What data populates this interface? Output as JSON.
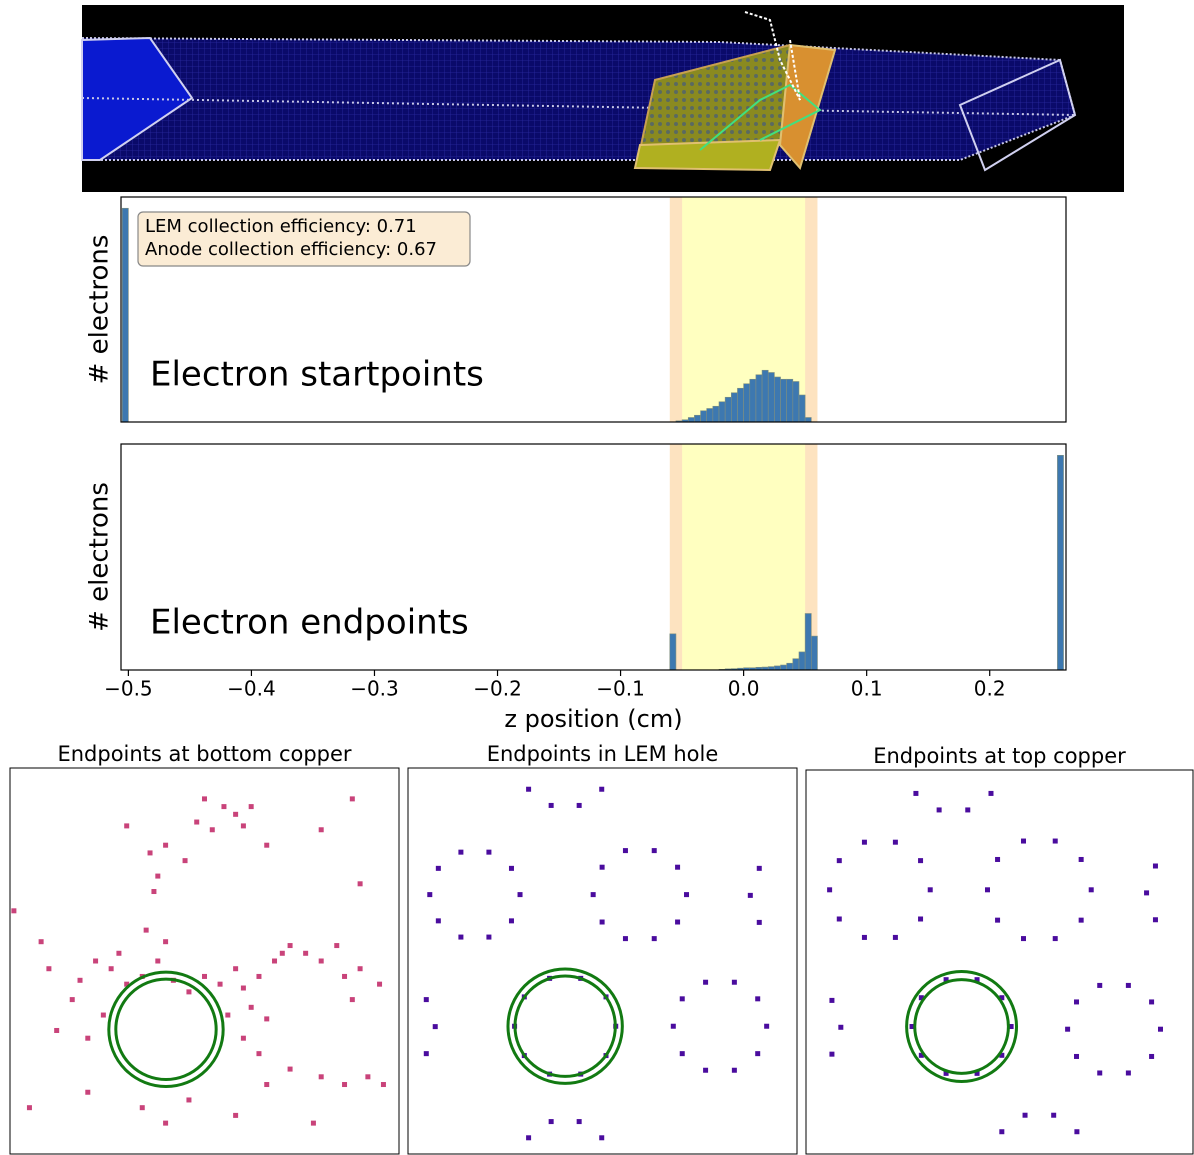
{
  "chart_data": [
    {
      "type": "histogram",
      "ylabel": "# electrons",
      "label": "Electron startpoints",
      "annotations": [
        "LEM collection efficiency: 0.71",
        "Anode collection efficiency: 0.67"
      ],
      "bins": [
        -0.505,
        -0.5,
        -0.06,
        -0.055,
        -0.05,
        -0.045,
        -0.04,
        -0.035,
        -0.03,
        -0.025,
        -0.02,
        -0.015,
        -0.01,
        -0.005,
        0,
        0.005,
        0.01,
        0.015,
        0.02,
        0.025,
        0.03,
        0.035,
        0.04,
        0.045,
        0.05,
        0.055,
        0.06,
        0.255,
        0.26
      ],
      "counts": [
        95,
        0,
        0,
        0.5,
        1,
        2,
        3,
        5,
        6,
        7,
        9,
        11,
        13,
        15,
        17,
        19,
        21,
        23,
        22,
        20,
        19,
        19,
        18,
        12,
        2,
        0,
        0,
        0
      ],
      "color": "#3d78b0",
      "xlim": [
        -0.506,
        0.262
      ],
      "ylim": [
        0,
        100
      ],
      "regions": [
        {
          "range": [
            -0.06,
            0.06
          ],
          "color": "#fde3c0"
        },
        {
          "range": [
            -0.05,
            0.05
          ],
          "color": "#ffffc0"
        }
      ]
    },
    {
      "type": "histogram",
      "ylabel": "# electrons",
      "label": "Electron endpoints",
      "xlabel": "z position (cm)",
      "bins": [
        -0.505,
        -0.5,
        -0.06,
        -0.055,
        -0.05,
        -0.045,
        -0.04,
        -0.035,
        -0.03,
        -0.025,
        -0.02,
        -0.015,
        -0.01,
        -0.005,
        0,
        0.005,
        0.01,
        0.015,
        0.02,
        0.025,
        0.03,
        0.035,
        0.04,
        0.045,
        0.05,
        0.055,
        0.06,
        0.255,
        0.26
      ],
      "counts": [
        0,
        0,
        16,
        0,
        0,
        0,
        0,
        0,
        0,
        0,
        0.3,
        0.5,
        0.6,
        0.8,
        1,
        1,
        1.2,
        1.3,
        1.5,
        1.8,
        2.2,
        3,
        5,
        8,
        25,
        15,
        0,
        95
      ],
      "color": "#3d78b0",
      "xlim": [
        -0.506,
        0.262
      ],
      "ylim": [
        0,
        100
      ],
      "xticks": [
        {
          "value": -0.5,
          "label": "−0.5"
        },
        {
          "value": -0.4,
          "label": "−0.4"
        },
        {
          "value": -0.3,
          "label": "−0.3"
        },
        {
          "value": -0.2,
          "label": "−0.2"
        },
        {
          "value": -0.1,
          "label": "−0.1"
        },
        {
          "value": 0,
          "label": "0.0"
        },
        0.1,
        0.2
      ],
      "regions": [
        {
          "range": [
            -0.06,
            0.06
          ],
          "color": "#fde3c0"
        },
        {
          "range": [
            -0.05,
            0.05
          ],
          "color": "#ffffc0"
        }
      ]
    },
    {
      "type": "scatter",
      "title": "Endpoints at bottom copper",
      "color": "#c9437a",
      "xlim": [
        0,
        100
      ],
      "ylim": [
        0,
        100
      ],
      "x": [
        50,
        55,
        58,
        60,
        52,
        48,
        40,
        36,
        38,
        37,
        45,
        30,
        62,
        66,
        80,
        88,
        90,
        1,
        8,
        10,
        18,
        22,
        26,
        30,
        34,
        38,
        40,
        35,
        28,
        42,
        46,
        50,
        54,
        58,
        60,
        62,
        64,
        68,
        70,
        72,
        76,
        80,
        84,
        86,
        90,
        95,
        88,
        16,
        12,
        20,
        60,
        64,
        72,
        80,
        86,
        92,
        96,
        20,
        34,
        40,
        46,
        58,
        66,
        78,
        5,
        24,
        56,
        66
      ],
      "y": [
        92,
        90,
        88,
        85,
        84,
        86,
        80,
        78,
        72,
        68,
        76,
        85,
        90,
        80,
        84,
        92,
        70,
        63,
        55,
        48,
        45,
        50,
        48,
        44,
        46,
        50,
        55,
        58,
        52,
        45,
        42,
        46,
        44,
        48,
        43,
        38,
        46,
        50,
        52,
        54,
        52,
        50,
        54,
        46,
        48,
        44,
        40,
        40,
        32,
        30,
        30,
        26,
        22,
        20,
        18,
        20,
        18,
        16,
        12,
        8,
        14,
        10,
        18,
        8,
        12,
        36,
        36,
        35
      ],
      "circles": [
        {
          "cx": 40.1,
          "cy": 32.3,
          "r": 12.9
        },
        {
          "cx": 40.1,
          "cy": 32.3,
          "r": 14.7
        }
      ],
      "circle_color": "#127a12"
    },
    {
      "type": "scatter",
      "title": "Endpoints in LEM hole",
      "color": "#4a0c9e",
      "xlim": [
        0,
        100
      ],
      "ylim": [
        0,
        100
      ],
      "x": [
        28.8,
        26.6,
        20.8,
        13.6,
        7.8,
        5.6,
        7.8,
        13.6,
        20.8,
        26.6,
        71.6,
        69.3,
        63.3,
        55.9,
        49.9,
        47.6,
        49.9,
        55.9,
        63.3,
        69.3,
        53.4,
        50.9,
        44.4,
        36.4,
        29.9,
        27.4,
        29.9,
        36.4,
        44.4,
        50.9,
        92.2,
        89.9,
        83.9,
        76.5,
        70.5,
        68.2,
        70.5,
        76.5,
        83.9,
        89.9,
        31.0,
        36.8,
        44.0,
        49.8,
        31.0,
        36.8,
        44.0,
        49.8,
        7,
        4.7,
        4.7,
        88,
        90.3,
        90.3
      ],
      "y": [
        67.2,
        74.0,
        78.2,
        78.2,
        74.0,
        67.2,
        60.4,
        56.2,
        56.2,
        60.4,
        67.2,
        74.3,
        78.6,
        78.6,
        74.3,
        67.2,
        60.1,
        55.8,
        55.8,
        60.1,
        33.1,
        40.7,
        45.5,
        45.5,
        40.7,
        33.1,
        25.5,
        20.7,
        20.7,
        25.5,
        33.1,
        40.2,
        44.5,
        44.5,
        40.2,
        33.1,
        26.0,
        21.7,
        21.7,
        26.0,
        94.5,
        90.3,
        90.3,
        94.5,
        4.2,
        8.4,
        8.4,
        4.2,
        33,
        40,
        26,
        67,
        74,
        60
      ],
      "circles": [
        {
          "cx": 40.4,
          "cy": 33.1,
          "r": 12.9
        },
        {
          "cx": 40.4,
          "cy": 33.1,
          "r": 14.7
        }
      ],
      "circle_color": "#127a12"
    },
    {
      "type": "scatter",
      "title": "Endpoints at top copper",
      "color": "#4a0c9e",
      "xlim": [
        0,
        100
      ],
      "ylim": [
        0,
        100
      ],
      "x": [
        32.1,
        29.6,
        23.1,
        15.1,
        8.6,
        6.1,
        8.6,
        15.1,
        23.1,
        29.6,
        73.7,
        71.1,
        64.4,
        56.2,
        49.5,
        46.9,
        49.5,
        56.2,
        64.4,
        71.1,
        53.0,
        50.6,
        44.2,
        36.2,
        29.8,
        27.4,
        29.8,
        36.2,
        44.2,
        50.6,
        91.6,
        89.3,
        83.3,
        75.9,
        69.9,
        67.6,
        69.9,
        75.9,
        83.3,
        89.3,
        28.4,
        34.4,
        41.8,
        47.8,
        50.6,
        56.6,
        64.0,
        70.0,
        9,
        6.7,
        6.7,
        88,
        90.3,
        90.3
      ],
      "y": [
        68.8,
        76.4,
        81.2,
        81.2,
        76.4,
        68.8,
        61.2,
        56.4,
        56.4,
        61.2,
        68.8,
        76.7,
        81.5,
        81.5,
        76.7,
        68.8,
        60.9,
        56.1,
        56.1,
        60.9,
        33.2,
        40.7,
        45.4,
        45.4,
        40.7,
        33.2,
        25.7,
        21.0,
        21.0,
        25.7,
        32.5,
        39.6,
        43.9,
        43.9,
        39.6,
        32.5,
        25.4,
        21.1,
        21.1,
        25.4,
        93.9,
        89.6,
        89.6,
        93.9,
        5.8,
        10.1,
        10.1,
        5.8,
        33,
        40,
        26,
        68,
        75,
        61
      ],
      "circles": [
        {
          "cx": 40.2,
          "cy": 33.2,
          "r": 12.1
        },
        {
          "cx": 40.2,
          "cy": 33.2,
          "r": 14.2
        }
      ],
      "circle_color": "#127a12"
    }
  ]
}
